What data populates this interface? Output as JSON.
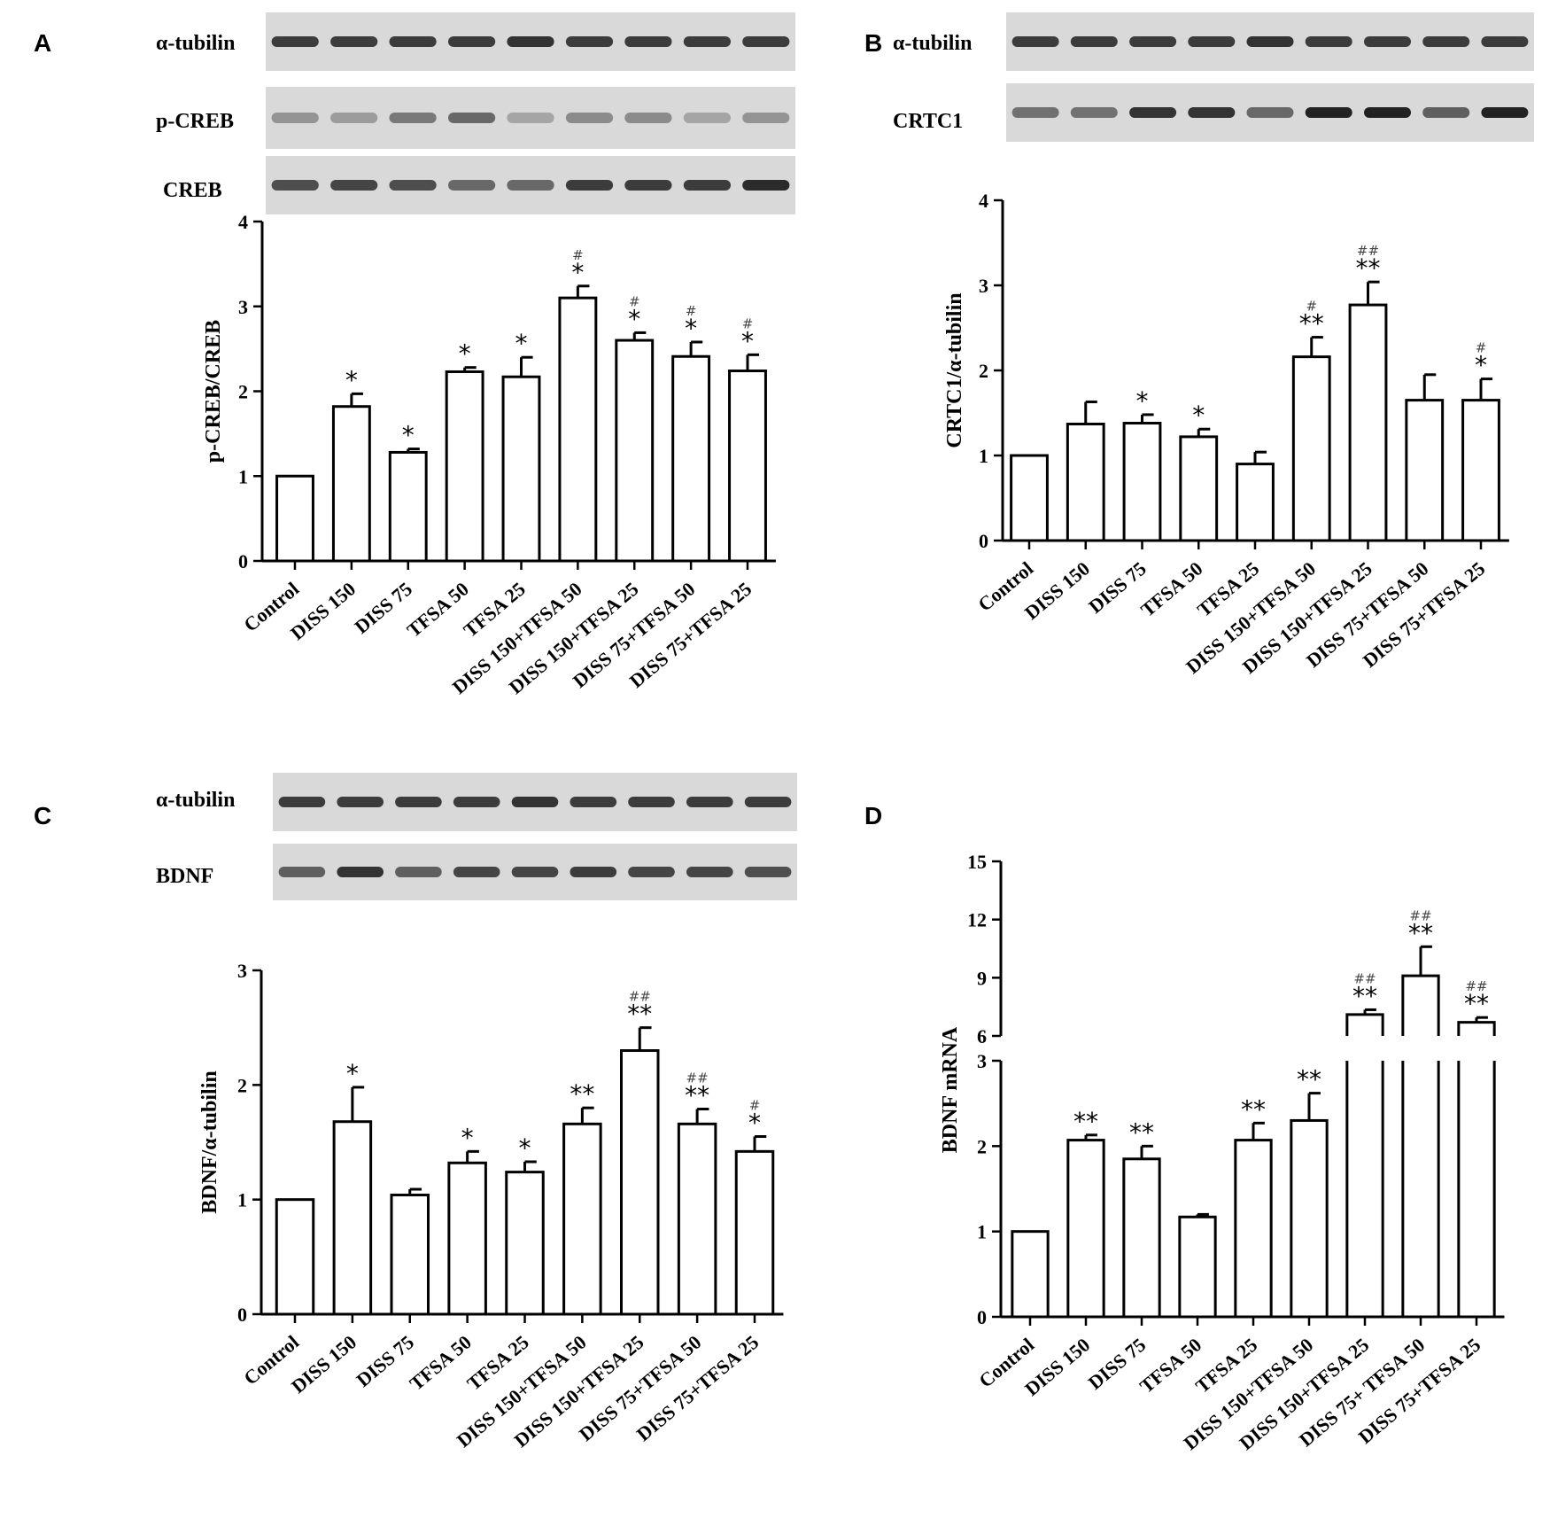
{
  "figure": {
    "panels": [
      {
        "id": "A",
        "letter": "A"
      },
      {
        "id": "B",
        "letter": "B"
      },
      {
        "id": "C",
        "letter": "C"
      },
      {
        "id": "D",
        "letter": "D"
      }
    ]
  },
  "blots": {
    "A": [
      {
        "label": "α-tubilin",
        "intensities": [
          0.8,
          0.8,
          0.8,
          0.8,
          0.85,
          0.8,
          0.8,
          0.8,
          0.8
        ]
      },
      {
        "label": "p-CREB",
        "intensities": [
          0.3,
          0.25,
          0.45,
          0.55,
          0.2,
          0.35,
          0.35,
          0.2,
          0.3
        ]
      },
      {
        "label": "CREB",
        "intensities": [
          0.7,
          0.75,
          0.7,
          0.55,
          0.55,
          0.8,
          0.8,
          0.8,
          0.9
        ]
      }
    ],
    "B": [
      {
        "label": "α-tubilin",
        "intensities": [
          0.8,
          0.8,
          0.8,
          0.8,
          0.85,
          0.8,
          0.8,
          0.8,
          0.8
        ]
      },
      {
        "label": "CRTC1",
        "intensities": [
          0.5,
          0.5,
          0.85,
          0.85,
          0.55,
          0.95,
          0.95,
          0.6,
          0.95
        ]
      }
    ],
    "C": [
      {
        "label": "α-tubilin",
        "intensities": [
          0.8,
          0.8,
          0.8,
          0.8,
          0.85,
          0.8,
          0.8,
          0.8,
          0.8
        ]
      },
      {
        "label": "BDNF",
        "intensities": [
          0.6,
          0.85,
          0.6,
          0.75,
          0.75,
          0.8,
          0.75,
          0.75,
          0.7
        ]
      }
    ]
  },
  "chart_data": [
    {
      "panel": "A",
      "type": "bar",
      "ylabel": "p-CREB/CREB",
      "ylim": [
        0,
        4
      ],
      "yticks": [
        "0",
        "1",
        "2",
        "3",
        "4"
      ],
      "categories": [
        "Control",
        "DISS 150",
        "DISS 75",
        "TFSA 50",
        "TFSA 25",
        "DISS 150+TFSA 50",
        "DISS 150+TFSA 25",
        "DISS 75+TFSA 50",
        "DISS 75+TFSA 25"
      ],
      "values": [
        1.0,
        1.82,
        1.28,
        2.23,
        2.17,
        3.1,
        2.6,
        2.41,
        2.24
      ],
      "errors": [
        0,
        0.15,
        0.04,
        0.05,
        0.23,
        0.14,
        0.09,
        0.17,
        0.19
      ],
      "stars": [
        "",
        "*",
        "*",
        "*",
        "*",
        "*",
        "*",
        "*",
        "*"
      ],
      "hashes": [
        "",
        "",
        "",
        "",
        "",
        "#",
        "#",
        "#",
        "#"
      ]
    },
    {
      "panel": "B",
      "type": "bar",
      "ylabel": "CRTC1/α-tubilin",
      "ylim": [
        0,
        4
      ],
      "yticks": [
        "0",
        "1",
        "2",
        "3",
        "4"
      ],
      "categories": [
        "Control",
        "DISS 150",
        "DISS 75",
        "TFSA 50",
        "TFSA 25",
        "DISS 150+TFSA 50",
        "DISS 150+TFSA 25",
        "DISS 75+TFSA 50",
        "DISS 75+TFSA 25"
      ],
      "values": [
        1.0,
        1.37,
        1.38,
        1.22,
        0.9,
        2.16,
        2.77,
        1.65,
        1.65
      ],
      "errors": [
        0,
        0.26,
        0.1,
        0.09,
        0.14,
        0.23,
        0.27,
        0.3,
        0.25
      ],
      "stars": [
        "",
        "",
        "*",
        "*",
        "",
        "**",
        "**",
        "",
        "*"
      ],
      "hashes": [
        "",
        "",
        "",
        "",
        "",
        "#",
        "##",
        "",
        "#"
      ]
    },
    {
      "panel": "C",
      "type": "bar",
      "ylabel": "BDNF/α-tubilin",
      "ylim": [
        0,
        3
      ],
      "yticks": [
        "0",
        "1",
        "2",
        "3"
      ],
      "categories": [
        "Control",
        "DISS 150",
        "DISS 75",
        "TFSA 50",
        "TFSA 25",
        "DISS 150+TFSA 50",
        "DISS 150+TFSA 25",
        "DISS 75+TFSA 50",
        "DISS 75+TFSA 25"
      ],
      "values": [
        1.0,
        1.68,
        1.04,
        1.32,
        1.24,
        1.66,
        2.3,
        1.66,
        1.42
      ],
      "errors": [
        0,
        0.3,
        0.05,
        0.1,
        0.09,
        0.14,
        0.2,
        0.13,
        0.13
      ],
      "stars": [
        "",
        "*",
        "",
        "*",
        "*",
        "**",
        "**",
        "**",
        "*"
      ],
      "hashes": [
        "",
        "",
        "",
        "",
        "",
        "",
        "##",
        "##",
        "#"
      ]
    },
    {
      "panel": "D",
      "type": "bar",
      "ylabel": "BDNF mRNA",
      "ylim": [
        0,
        15
      ],
      "axis_break": [
        3,
        6
      ],
      "yticks_lower": [
        "0",
        "1",
        "2",
        "3"
      ],
      "yticks_upper": [
        "6",
        "9",
        "12",
        "15"
      ],
      "categories": [
        "Control",
        "DISS 150",
        "DISS 75",
        "TFSA 50",
        "TFSA 25",
        "DISS 150+TFSA 50",
        "DISS 150+TFSA 25",
        "DISS 75+ TFSA 50",
        "DISS 75+TFSA 25"
      ],
      "values": [
        1.0,
        2.07,
        1.85,
        1.17,
        2.07,
        2.3,
        7.1,
        9.1,
        6.7
      ],
      "errors": [
        0,
        0.06,
        0.15,
        0.03,
        0.2,
        0.32,
        0.25,
        1.5,
        0.25
      ],
      "stars": [
        "",
        "**",
        "**",
        "",
        "**",
        "**",
        "**",
        "**",
        "**"
      ],
      "hashes": [
        "",
        "",
        "",
        "",
        "",
        "",
        "##",
        "##",
        "##"
      ]
    }
  ]
}
